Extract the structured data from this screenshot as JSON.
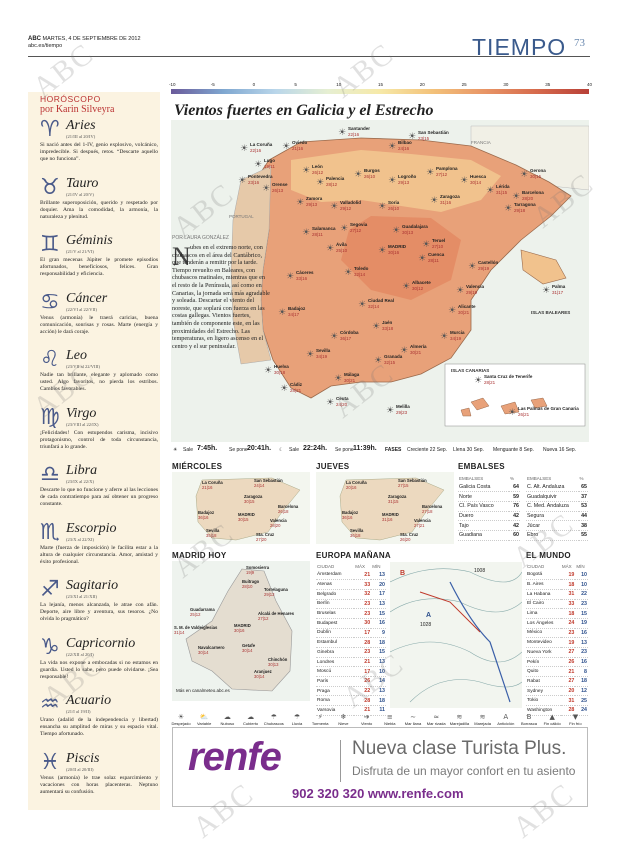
{
  "header": {
    "brand": "ABC",
    "date": "MARTES, 4 DE SEPTIEMBRE DE 2012",
    "site": "abc.es/tiempo",
    "section": "TIEMPO",
    "page": "73"
  },
  "horoscope": {
    "title": "HORÓSCOPO",
    "author": "por Karin Silveyra",
    "signs": [
      {
        "name": "Aries",
        "dates": "(21/III al 20/IV)",
        "text": "Si nació antes del 1-IV, genio explosivo, volcánico, impredecible. Si después, retos. “Descarte aquello que no funciona”."
      },
      {
        "name": "Tauro",
        "dates": "(21/IV al 20/V)",
        "text": "Brillante superoposición, querido y respetado por doquier. Ama la comodidad, la armonía, la naturaleza y plenitud."
      },
      {
        "name": "Géminis",
        "dates": "(21/V al 21/VI)",
        "text": "El gran mecenas Júpiter le promete episodios afortunados, beneficiosos, felices. Gran responsabilidad y eficiencia."
      },
      {
        "name": "Cáncer",
        "dates": "(22/VI al 22/VII)",
        "text": "Venus (armonía) le traerá caricias, buena comunicación, sonrisas y rosas. Marte (energía y acción) le dará coraje."
      },
      {
        "name": "Leo",
        "dates": "(23/VII al 22/VIII)",
        "text": "Nadie tan brillante, elegante y aplomado como usted. Algo favoritos, no pierda los estribos. Cambios favorables."
      },
      {
        "name": "Virgo",
        "dates": "(23/VIII al 22/IX)",
        "text": "¡Felicidades! Con estupendos carisma, incisivo protagonismo, control de toda circunstancia, triunfará a lo grande."
      },
      {
        "name": "Libra",
        "dates": "(23/IX al 22/X)",
        "text": "Descarte lo que no funcione y aferre al las lecciones de cada contratiempo para así obtener un progreso constante."
      },
      {
        "name": "Escorpio",
        "dates": "(23/X al 22/XI)",
        "text": "Marte (fuerza de imposición) le facilita estar a la altura de cualquier circunstancia. Amor, amistad y éxito profesional."
      },
      {
        "name": "Sagitario",
        "dates": "(23/XI al 21/XII)",
        "text": "La lejanía, menos alcanzada, le atrae con afán. Deporte, aire libre y aventura, sus tesoros. ¿No olvida lo pragmático?"
      },
      {
        "name": "Capricornio",
        "dates": "(22/XII al 20/I)",
        "text": "La vida nos expone a embocadas si no estamos en guardia. Usted lo sabe, pero puede olvidarse. ¡Sea responsable!"
      },
      {
        "name": "Acuario",
        "dates": "(21/I al 19/II)",
        "text": "Urano (adalid de la independencia y libertad) ensancha su amplitud de miras y su espacio vital. Tiempo afortunado."
      },
      {
        "name": "Piscis",
        "dates": "(20/II al 20/III)",
        "text": "Venus (armonía) le trae solaz esparcimiento y vacaciones con horas placenteras. Neptuno aumentará su confusión."
      }
    ]
  },
  "scale": [
    "-10",
    "-5",
    "0",
    "5",
    "10",
    "15",
    "20",
    "25",
    "30",
    "35",
    "40"
  ],
  "map": {
    "title": "Vientos fuertes en Galicia y el Estrecho",
    "sea_labels": [
      "FRANCIA",
      "PORTUGAL",
      "ISLAS BALEARES",
      "ISLAS CANARIAS"
    ],
    "cities": [
      {
        "n": "La Coruña",
        "t": "22|16"
      },
      {
        "n": "Oviedo",
        "t": "21|16"
      },
      {
        "n": "Santander",
        "t": "22|16"
      },
      {
        "n": "Bilbao",
        "t": "24|16"
      },
      {
        "n": "San Sebastián",
        "t": "23|15"
      },
      {
        "n": "Lugo",
        "t": "19|11"
      },
      {
        "n": "Pontevedra",
        "t": "23|16"
      },
      {
        "n": "Orense",
        "t": "26|13"
      },
      {
        "n": "León",
        "t": "26|12"
      },
      {
        "n": "Palencia",
        "t": "28|12"
      },
      {
        "n": "Burgos",
        "t": "26|10"
      },
      {
        "n": "Logroño",
        "t": "29|13"
      },
      {
        "n": "Pamplona",
        "t": "27|12"
      },
      {
        "n": "Huesca",
        "t": "30|14"
      },
      {
        "n": "Lérida",
        "t": "31|15"
      },
      {
        "n": "Gerona",
        "t": "30|15"
      },
      {
        "n": "Barcelona",
        "t": "28|20"
      },
      {
        "n": "Zamora",
        "t": "29|13"
      },
      {
        "n": "Valladolid",
        "t": "29|12"
      },
      {
        "n": "Soria",
        "t": "26|10"
      },
      {
        "n": "Zaragoza",
        "t": "31|16"
      },
      {
        "n": "Tarragona",
        "t": "29|18"
      },
      {
        "n": "Salamanca",
        "t": "28|11"
      },
      {
        "n": "Segovia",
        "t": "27|12"
      },
      {
        "n": "Guadalajara",
        "t": "30|13"
      },
      {
        "n": "Teruel",
        "t": "27|10"
      },
      {
        "n": "Castellón",
        "t": "29|19"
      },
      {
        "n": "Ávila",
        "t": "25|10"
      },
      {
        "n": "MADRID",
        "t": "30|16"
      },
      {
        "n": "Cuenca",
        "t": "28|11"
      },
      {
        "n": "Valencia",
        "t": "29|19"
      },
      {
        "n": "Cáceres",
        "t": "33|16"
      },
      {
        "n": "Toledo",
        "t": "32|14"
      },
      {
        "n": "Albacete",
        "t": "30|12"
      },
      {
        "n": "Alicante",
        "t": "30|21"
      },
      {
        "n": "Badajoz",
        "t": "34|17"
      },
      {
        "n": "Ciudad Real",
        "t": "32|14"
      },
      {
        "n": "Murcia",
        "t": "34|19"
      },
      {
        "n": "Córdoba",
        "t": "36|17"
      },
      {
        "n": "Jaén",
        "t": "33|18"
      },
      {
        "n": "Sevilla",
        "t": "34|19"
      },
      {
        "n": "Granada",
        "t": "32|15"
      },
      {
        "n": "Almería",
        "t": "30|21"
      },
      {
        "n": "Huelva",
        "t": "30|18"
      },
      {
        "n": "Cádiz",
        "t": "28|21"
      },
      {
        "n": "Málaga",
        "t": "30|21"
      },
      {
        "n": "Ceuta",
        "t": "24|20"
      },
      {
        "n": "Melilla",
        "t": "29|23"
      },
      {
        "n": "Palma",
        "t": "31|17"
      },
      {
        "n": "Santa Cruz de Tenerife",
        "t": "28|21"
      },
      {
        "n": "Las Palmas de Gran Canaria",
        "t": "26|21"
      }
    ]
  },
  "article": {
    "caption": "POR LAURA GONZÁLEZ",
    "dropcap": "N",
    "text": "ubes en el extremo norte, con chubascos en el área del Cantábrico, que tenderán a remitir por la tarde. Tiempo revuelto en Baleares, con chubascos matinales, mientras que en el resto de la Península, así como en Canarias, la jornada será más agradable y soleada. Descartar el viento del noreste, que soplará con fuerza en las costas gallegas. Vientos fuertes, también de componente este, en las proximidades del Estrecho. Las temperaturas, en ligero ascenso en el centro y el sur peninsular."
  },
  "strip": {
    "sun_rise_label": "Sale",
    "sun_rise": "7:45h.",
    "sun_set_label": "Se pone",
    "sun_set": "20:41h.",
    "moon_rise_label": "Sale",
    "moon_rise": "22:24h.",
    "moon_set_label": "Se pone",
    "moon_set": "11:39h.",
    "phases_label": "FASES",
    "phases": [
      "Creciente 22 Sep.",
      "Llena 30 Sep.",
      "Menguante 8 Sep.",
      "Nueva 16 Sep."
    ]
  },
  "wednesday": {
    "title": "MIÉRCOLES",
    "cities": [
      [
        "La Coruña",
        "21|16"
      ],
      [
        "San Sebastián",
        "24|14"
      ],
      [
        "Zaragoza",
        "30|15"
      ],
      [
        "Barcelona",
        "26|18"
      ],
      [
        "Badajoz",
        "36|16"
      ],
      [
        "MADRID",
        "30|15"
      ],
      [
        "Valencia",
        "28|20"
      ],
      [
        "Sevilla",
        "35|18"
      ],
      [
        "Sta. Cruz",
        "27|20"
      ]
    ]
  },
  "thursday": {
    "title": "JUEVES",
    "cities": [
      [
        "La Coruña",
        "20|16"
      ],
      [
        "San Sebastián",
        "27|15"
      ],
      [
        "Zaragoza",
        "31|15"
      ],
      [
        "Barcelona",
        "27|18"
      ],
      [
        "Badajoz",
        "36|16"
      ],
      [
        "MADRID",
        "31|16"
      ],
      [
        "Valencia",
        "27|21"
      ],
      [
        "Sevilla",
        "36|18"
      ],
      [
        "Sta. Cruz",
        "26|20"
      ]
    ]
  },
  "reservoirs": {
    "title": "EMBALSES",
    "col": "%",
    "left": [
      [
        "Galicia Costa",
        "64"
      ],
      [
        "Norte",
        "59"
      ],
      [
        "CI. País Vasco",
        "76"
      ],
      [
        "Duero",
        "42"
      ],
      [
        "Tajo",
        "42"
      ],
      [
        "Guadiana",
        "60"
      ]
    ],
    "right": [
      [
        "C. Alt. Andaluza",
        "65"
      ],
      [
        "Guadalquivir",
        "37"
      ],
      [
        "C. Med. Andaluza",
        "53"
      ],
      [
        "Segura",
        "44"
      ],
      [
        "Júcar",
        "38"
      ],
      [
        "Ebro",
        "55"
      ]
    ]
  },
  "madrid": {
    "title": "MADRID HOY",
    "cities": [
      [
        "Somosierra",
        "19|9"
      ],
      [
        "Buitrago",
        "28|10"
      ],
      [
        "Torrelaguna",
        "29|13"
      ],
      [
        "Guadarrama",
        "25|12"
      ],
      [
        "Alcalá de Henares",
        "27|12"
      ],
      [
        "S. M. de Valdeiglesias",
        "31|14"
      ],
      [
        "MADRID",
        "30|16"
      ],
      [
        "Navalcarnero",
        "30|14"
      ],
      [
        "Getafe",
        "30|14"
      ],
      [
        "Aranjuez",
        "30|14"
      ],
      [
        "Chinchón",
        "30|13"
      ]
    ],
    "footer": "Más en canalmeteo.abc.es"
  },
  "europe": {
    "title": "EUROPA MAÑANA",
    "cols": [
      "CIUDAD",
      "MÁX",
      "MÍN"
    ],
    "rows": [
      [
        "Ámsterdam",
        "21",
        "13"
      ],
      [
        "Atenas",
        "33",
        "20"
      ],
      [
        "Belgrado",
        "32",
        "17"
      ],
      [
        "Berlín",
        "23",
        "13"
      ],
      [
        "Bruselas",
        "23",
        "15"
      ],
      [
        "Budapest",
        "30",
        "16"
      ],
      [
        "Dublín",
        "17",
        "9"
      ],
      [
        "Estambul",
        "28",
        "18"
      ],
      [
        "Ginebra",
        "23",
        "15"
      ],
      [
        "Londres",
        "21",
        "13"
      ],
      [
        "Moscú",
        "17",
        "10"
      ],
      [
        "París",
        "26",
        "14"
      ],
      [
        "Praga",
        "22",
        "13"
      ],
      [
        "Roma",
        "28",
        "18"
      ],
      [
        "Varsovia",
        "21",
        "11"
      ]
    ],
    "pressure_labels": [
      "1028",
      "1008",
      "A",
      "B"
    ]
  },
  "world": {
    "title": "EL MUNDO",
    "cols": [
      "CIUDAD",
      "MÁX",
      "MÍN"
    ],
    "rows": [
      [
        "Bogotá",
        "19",
        "10"
      ],
      [
        "B. Aires",
        "18",
        "10"
      ],
      [
        "La Habana",
        "31",
        "22"
      ],
      [
        "El Cairo",
        "33",
        "23"
      ],
      [
        "Lima",
        "18",
        "15"
      ],
      [
        "Los Ángeles",
        "24",
        "19"
      ],
      [
        "México",
        "23",
        "16"
      ],
      [
        "Montevideo",
        "19",
        "13"
      ],
      [
        "Nueva York",
        "27",
        "23"
      ],
      [
        "Pekín",
        "26",
        "16"
      ],
      [
        "Quito",
        "21",
        "8"
      ],
      [
        "Rabat",
        "27",
        "18"
      ],
      [
        "Sydney",
        "20",
        "12"
      ],
      [
        "Tokio",
        "31",
        "25"
      ],
      [
        "Washington",
        "28",
        "24"
      ]
    ]
  },
  "legend": [
    "Despejado",
    "Variable",
    "Nuboso",
    "Cubierto",
    "Chubascos",
    "Lluvia",
    "Tormenta",
    "Nieve",
    "Viento",
    "Niebla",
    "Mar llana",
    "Mar rizada",
    "Marejadilla",
    "Marejada",
    "Anticiclón",
    "Borrasca",
    "Fin cálido",
    "Fin frío"
  ],
  "ad": {
    "logo": "renfe",
    "headline": "Nueva clase Turista Plus.",
    "subline": "Disfruta de un mayor confort en tu asiento",
    "phone": "902 320 320 www.renfe.com",
    "brand_color": "#7a2d8c"
  },
  "watermark": "ABC"
}
